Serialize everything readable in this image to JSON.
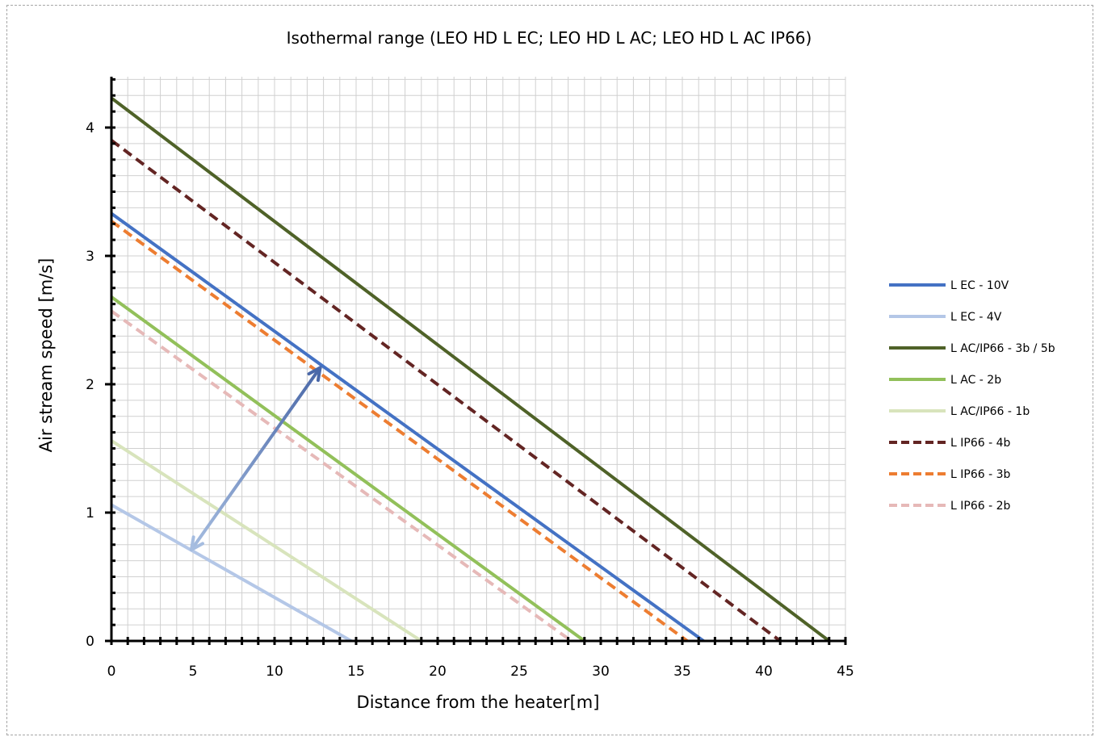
{
  "chart_data": {
    "type": "line",
    "title": "Isothermal range (LEO HD L EC; LEO HD L AC; LEO HD L AC IP66)",
    "xlabel": "Distance from the heater[m]",
    "ylabel": "Air stream speed [m/s]",
    "xlim": [
      0,
      45
    ],
    "ylim": [
      0,
      4.4
    ],
    "xticks": [
      0,
      5,
      10,
      15,
      20,
      25,
      30,
      35,
      40,
      45
    ],
    "yticks": [
      0,
      1,
      2,
      3,
      4
    ],
    "grid": true,
    "legend_position": "right",
    "series": [
      {
        "name": "L EC - 10V",
        "color": "#4472C4",
        "dash": "solid",
        "x": [
          0,
          36.3
        ],
        "y": [
          3.33,
          0
        ]
      },
      {
        "name": "L EC - 4V",
        "color": "#B4C7E7",
        "dash": "solid",
        "x": [
          0,
          14.7
        ],
        "y": [
          1.06,
          0
        ]
      },
      {
        "name": "L AC/IP66 - 3b / 5b",
        "color": "#4F6228",
        "dash": "solid",
        "x": [
          0,
          44
        ],
        "y": [
          4.23,
          0
        ]
      },
      {
        "name": "L AC - 2b",
        "color": "#92C05A",
        "dash": "solid",
        "x": [
          0,
          29
        ],
        "y": [
          2.68,
          0
        ]
      },
      {
        "name": "L AC/IP66 - 1b",
        "color": "#D8E4BC",
        "dash": "solid",
        "x": [
          0,
          19
        ],
        "y": [
          1.56,
          0
        ]
      },
      {
        "name": "L IP66 - 4b",
        "color": "#632523",
        "dash": "dashed",
        "x": [
          0,
          41
        ],
        "y": [
          3.9,
          0
        ]
      },
      {
        "name": "L IP66 - 3b",
        "color": "#ED7D31",
        "dash": "dashed",
        "x": [
          0,
          35.3
        ],
        "y": [
          3.27,
          0
        ]
      },
      {
        "name": "L IP66 - 2b",
        "color": "#E6B9B8",
        "dash": "dashed",
        "x": [
          0,
          28.2
        ],
        "y": [
          2.57,
          0
        ]
      }
    ],
    "annotations": [
      {
        "type": "double-arrow",
        "from": {
          "x": 4.9,
          "y": 0.71
        },
        "to": {
          "x": 12.8,
          "y": 2.13
        },
        "color_start": "#A6BDE0",
        "color_end": "#4A68A8"
      }
    ]
  }
}
